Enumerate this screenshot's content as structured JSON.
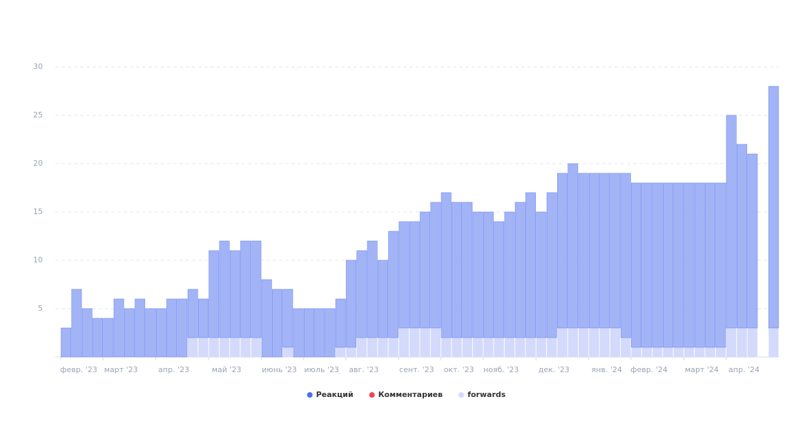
{
  "chart_data": {
    "type": "bar",
    "stacked": true,
    "categories": [
      "февр. '23",
      null,
      null,
      null,
      "март '23",
      null,
      null,
      null,
      null,
      "апр. '23",
      null,
      null,
      null,
      null,
      "май '23",
      null,
      null,
      null,
      null,
      "июнь '23",
      null,
      null,
      null,
      "июль '23",
      null,
      null,
      null,
      "авг. '23",
      null,
      null,
      null,
      null,
      "сент. '23",
      null,
      null,
      null,
      "окт. '23",
      null,
      null,
      null,
      "нояб. '23",
      null,
      null,
      null,
      null,
      "дек. '23",
      null,
      null,
      null,
      null,
      "янв. '24",
      null,
      null,
      null,
      "февр. '24",
      null,
      null,
      null,
      null,
      "март '24",
      null,
      null,
      null,
      "апр. '24",
      null,
      null,
      null,
      null
    ],
    "series": [
      {
        "name": "forwards",
        "color": "#d3dafb",
        "values": [
          0,
          0,
          0,
          0,
          0,
          0,
          0,
          0,
          0,
          0,
          0,
          0,
          2,
          2,
          2,
          2,
          2,
          2,
          2,
          0,
          0,
          1,
          0,
          0,
          0,
          0,
          1,
          1,
          2,
          2,
          2,
          2,
          3,
          3,
          3,
          3,
          2,
          2,
          2,
          2,
          2,
          2,
          2,
          2,
          2,
          2,
          2,
          3,
          3,
          3,
          3,
          3,
          3,
          2,
          1,
          1,
          1,
          1,
          1,
          1,
          1,
          1,
          1,
          3,
          3,
          3,
          0,
          3
        ]
      },
      {
        "name": "Реакций",
        "color": "#4c6ef5",
        "values": [
          3,
          7,
          5,
          4,
          4,
          6,
          5,
          6,
          5,
          5,
          6,
          6,
          5,
          4,
          9,
          10,
          9,
          10,
          10,
          8,
          7,
          6,
          5,
          5,
          5,
          5,
          5,
          9,
          9,
          10,
          8,
          11,
          11,
          11,
          12,
          13,
          15,
          14,
          14,
          13,
          13,
          12,
          13,
          14,
          15,
          13,
          15,
          16,
          17,
          16,
          16,
          16,
          16,
          17,
          17,
          17,
          17,
          17,
          17,
          17,
          17,
          17,
          17,
          22,
          19,
          18,
          0,
          25
        ]
      },
      {
        "name": "Комментариев",
        "color": "#f0435a",
        "values": [
          0,
          0,
          0,
          0,
          0,
          0,
          0,
          0,
          0,
          0,
          0,
          0,
          0,
          0,
          0,
          0,
          0,
          0,
          0,
          0,
          0,
          0,
          0,
          0,
          0,
          0,
          0,
          0,
          0,
          0,
          0,
          0,
          0,
          0,
          0,
          0,
          0,
          0,
          0,
          0,
          0,
          0,
          0,
          0,
          0,
          0,
          0,
          0,
          0,
          0,
          0,
          0,
          0,
          0,
          0,
          0,
          0,
          0,
          0,
          0,
          0,
          0,
          0,
          0,
          0,
          0,
          0,
          0
        ]
      }
    ],
    "ylim": [
      0,
      30
    ],
    "yticks": [
      5,
      10,
      15,
      20,
      25,
      30
    ],
    "grid": true,
    "legend": "bottom"
  }
}
